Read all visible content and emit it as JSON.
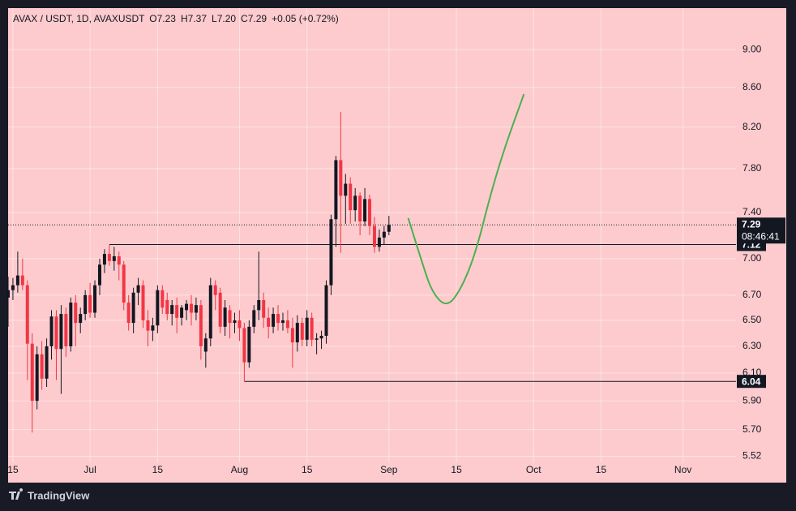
{
  "chart_data": {
    "type": "candlestick",
    "header": "AVAX / USDT, 1D, AVAXUSDT",
    "header_ohlc": [
      "O7.23",
      "H7.37",
      "L7.20",
      "C7.29"
    ],
    "change": "+0.05 (+0.72%)",
    "brand": "TradingView",
    "log_scale": true,
    "grid": true,
    "up_color": "#131722",
    "down_color": "#f23645",
    "x": [
      "06-14",
      "06-15",
      "06-16",
      "06-17",
      "06-18",
      "06-19",
      "06-20",
      "06-21",
      "06-22",
      "06-23",
      "06-24",
      "06-25",
      "06-26",
      "06-27",
      "06-28",
      "06-29",
      "06-30",
      "07-01",
      "07-02",
      "07-03",
      "07-04",
      "07-05",
      "07-06",
      "07-07",
      "07-08",
      "07-09",
      "07-10",
      "07-11",
      "07-12",
      "07-13",
      "07-14",
      "07-15",
      "07-16",
      "07-17",
      "07-18",
      "07-19",
      "07-20",
      "07-21",
      "07-22",
      "07-23",
      "07-24",
      "07-25",
      "07-26",
      "07-27",
      "07-28",
      "07-29",
      "07-30",
      "07-31",
      "08-01",
      "08-02",
      "08-03",
      "08-04",
      "08-05",
      "08-06",
      "08-07",
      "08-08",
      "08-09",
      "08-10",
      "08-11",
      "08-12",
      "08-13",
      "08-14",
      "08-15",
      "08-16",
      "08-17",
      "08-18",
      "08-19",
      "08-20",
      "08-21",
      "08-22",
      "08-23",
      "08-24",
      "08-25",
      "08-26",
      "08-27",
      "08-28",
      "08-29",
      "08-30",
      "08-31",
      "09-01"
    ],
    "open": [
      6.68,
      6.74,
      6.78,
      6.86,
      6.78,
      6.32,
      5.9,
      6.24,
      6.06,
      6.3,
      6.53,
      6.28,
      6.55,
      6.3,
      6.64,
      6.48,
      6.55,
      6.7,
      6.56,
      6.78,
      6.95,
      7.04,
      6.98,
      7.02,
      6.95,
      6.64,
      6.48,
      6.72,
      6.78,
      6.5,
      6.42,
      6.46,
      6.74,
      6.66,
      6.55,
      6.62,
      6.52,
      6.58,
      6.63,
      6.56,
      6.62,
      6.26,
      6.36,
      6.78,
      6.72,
      6.45,
      6.58,
      6.48,
      6.5,
      6.44,
      6.18,
      6.45,
      6.58,
      6.66,
      6.52,
      6.45,
      6.55,
      6.48,
      6.5,
      6.44,
      6.33,
      6.48,
      6.35,
      6.52,
      6.35,
      6.36,
      6.38,
      6.78,
      7.34,
      7.88,
      7.55,
      7.66,
      7.42,
      7.55,
      7.32,
      7.52,
      7.28,
      7.1,
      7.18,
      7.23
    ],
    "high": [
      6.85,
      6.84,
      7.06,
      7.0,
      6.82,
      6.4,
      6.3,
      6.34,
      6.36,
      6.58,
      6.58,
      6.62,
      6.6,
      6.68,
      6.7,
      6.6,
      6.74,
      6.8,
      6.82,
      7.0,
      7.08,
      7.12,
      7.1,
      7.06,
      6.98,
      6.7,
      6.76,
      6.84,
      6.82,
      6.58,
      6.52,
      6.78,
      6.78,
      6.72,
      6.66,
      6.68,
      6.62,
      6.66,
      6.7,
      6.68,
      6.66,
      6.4,
      6.84,
      6.82,
      6.76,
      6.66,
      6.62,
      6.56,
      6.58,
      6.48,
      6.5,
      6.62,
      7.06,
      6.72,
      6.6,
      6.6,
      6.62,
      6.56,
      6.58,
      6.52,
      6.54,
      6.52,
      6.58,
      6.56,
      6.4,
      6.42,
      6.82,
      7.38,
      7.92,
      8.35,
      7.75,
      7.72,
      7.62,
      7.58,
      7.62,
      7.56,
      7.36,
      7.25,
      7.28,
      7.37
    ],
    "low": [
      6.45,
      6.66,
      6.72,
      6.74,
      6.05,
      5.68,
      5.84,
      5.98,
      6.0,
      6.2,
      6.05,
      5.95,
      6.22,
      6.26,
      6.3,
      6.4,
      6.5,
      6.52,
      6.52,
      6.7,
      6.88,
      6.94,
      6.9,
      6.82,
      6.58,
      6.42,
      6.4,
      6.62,
      6.44,
      6.3,
      6.34,
      6.4,
      6.55,
      6.5,
      6.46,
      6.4,
      6.46,
      6.5,
      6.46,
      6.5,
      6.2,
      6.14,
      6.3,
      6.58,
      6.4,
      6.38,
      6.36,
      6.4,
      6.34,
      6.04,
      6.14,
      6.4,
      6.5,
      6.44,
      6.36,
      6.4,
      6.42,
      6.42,
      6.4,
      6.14,
      6.26,
      6.3,
      6.3,
      6.3,
      6.24,
      6.28,
      6.32,
      6.7,
      7.1,
      7.05,
      7.3,
      7.3,
      7.32,
      7.2,
      7.28,
      7.2,
      7.05,
      7.06,
      7.12,
      7.2
    ],
    "close": [
      6.74,
      6.78,
      6.86,
      6.78,
      6.32,
      5.9,
      6.24,
      6.06,
      6.3,
      6.53,
      6.28,
      6.55,
      6.3,
      6.64,
      6.48,
      6.55,
      6.7,
      6.56,
      6.78,
      6.95,
      7.04,
      6.98,
      7.02,
      6.95,
      6.64,
      6.48,
      6.72,
      6.78,
      6.5,
      6.42,
      6.46,
      6.74,
      6.6,
      6.55,
      6.62,
      6.52,
      6.6,
      6.63,
      6.56,
      6.62,
      6.3,
      6.36,
      6.78,
      6.7,
      6.45,
      6.6,
      6.48,
      6.5,
      6.44,
      6.18,
      6.45,
      6.58,
      6.66,
      6.52,
      6.45,
      6.55,
      6.48,
      6.5,
      6.44,
      6.33,
      6.48,
      6.35,
      6.52,
      6.35,
      6.36,
      6.38,
      6.78,
      7.34,
      7.88,
      7.55,
      7.66,
      7.42,
      7.55,
      7.32,
      7.52,
      7.28,
      7.1,
      7.18,
      7.23,
      7.29
    ],
    "ylim": [
      5.48,
      9.46
    ],
    "yticks": [
      {
        "value": 5.52,
        "label": "5.52"
      },
      {
        "value": 5.7,
        "label": "5.70"
      },
      {
        "value": 5.9,
        "label": "5.90"
      },
      {
        "value": 6.1,
        "label": "6.10"
      },
      {
        "value": 6.3,
        "label": "6.30"
      },
      {
        "value": 6.5,
        "label": "6.50"
      },
      {
        "value": 6.7,
        "label": "6.70"
      },
      {
        "value": 7,
        "label": "7.00"
      },
      {
        "value": 7.4,
        "label": "7.40"
      },
      {
        "value": 7.8,
        "label": "7.80"
      },
      {
        "value": 8.2,
        "label": "8.20"
      },
      {
        "value": 8.6,
        "label": "8.60"
      },
      {
        "value": 9,
        "label": "9.00"
      }
    ],
    "xlim": [
      "06-14",
      "11-12"
    ],
    "xticks": [
      {
        "value": "06-15",
        "label": "15"
      },
      {
        "value": "07-01",
        "label": "Jul"
      },
      {
        "value": "07-15",
        "label": "15"
      },
      {
        "value": "08-01",
        "label": "Aug"
      },
      {
        "value": "08-15",
        "label": "15"
      },
      {
        "value": "09-01",
        "label": "Sep"
      },
      {
        "value": "09-15",
        "label": "15"
      },
      {
        "value": "10-01",
        "label": "Oct"
      },
      {
        "value": "10-15",
        "label": "15"
      },
      {
        "value": "11-01",
        "label": "Nov"
      }
    ],
    "levels": [
      {
        "value": 7.12,
        "start": "07-05"
      },
      {
        "value": 6.04,
        "start": "08-02"
      }
    ],
    "last": {
      "value": 7.29,
      "countdown": "08:46:41"
    },
    "projection": {
      "color": "#4caf50",
      "x": [
        "09-05",
        "09-08",
        "09-10",
        "09-13",
        "09-16",
        "09-19",
        "09-22",
        "09-25",
        "09-29"
      ],
      "values": [
        7.35,
        6.95,
        6.72,
        6.6,
        6.75,
        7.05,
        7.55,
        8.0,
        8.53
      ]
    }
  }
}
